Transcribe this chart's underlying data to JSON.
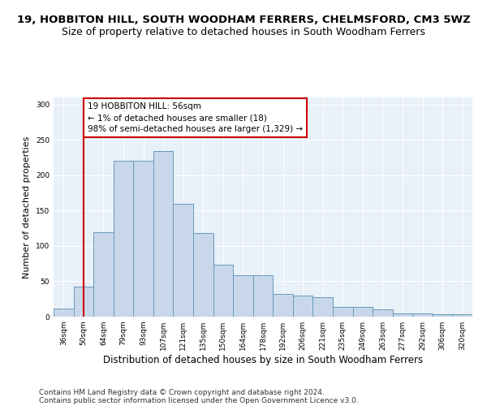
{
  "title": "19, HOBBITON HILL, SOUTH WOODHAM FERRERS, CHELMSFORD, CM3 5WZ",
  "subtitle": "Size of property relative to detached houses in South Woodham Ferrers",
  "xlabel": "Distribution of detached houses by size in South Woodham Ferrers",
  "ylabel": "Number of detached properties",
  "categories": [
    "36sqm",
    "50sqm",
    "64sqm",
    "79sqm",
    "93sqm",
    "107sqm",
    "121sqm",
    "135sqm",
    "150sqm",
    "164sqm",
    "178sqm",
    "192sqm",
    "206sqm",
    "221sqm",
    "235sqm",
    "249sqm",
    "263sqm",
    "277sqm",
    "292sqm",
    "306sqm",
    "320sqm"
  ],
  "values": [
    11,
    42,
    119,
    220,
    220,
    234,
    160,
    118,
    73,
    59,
    58,
    32,
    30,
    27,
    14,
    14,
    10,
    5,
    5,
    3,
    3
  ],
  "bar_color": "#c8d8ea",
  "bar_edge_color": "#6699bb",
  "bar_linewidth": 0.7,
  "annotation_text_line1": "19 HOBBITON HILL: 56sqm",
  "annotation_text_line2": "← 1% of detached houses are smaller (18)",
  "annotation_text_line3": "98% of semi-detached houses are larger (1,329) →",
  "annotation_box_facecolor": "#ffffff",
  "annotation_box_edgecolor": "#cc0000",
  "vline_color": "#cc0000",
  "vline_x_index": 1,
  "footer1": "Contains HM Land Registry data © Crown copyright and database right 2024.",
  "footer2": "Contains public sector information licensed under the Open Government Licence v3.0.",
  "title_fontsize": 9.5,
  "subtitle_fontsize": 9,
  "xlabel_fontsize": 8.5,
  "ylabel_fontsize": 8,
  "tick_fontsize": 6.5,
  "annotation_fontsize": 7.5,
  "footer_fontsize": 6.5,
  "yticks": [
    0,
    50,
    100,
    150,
    200,
    250,
    300
  ],
  "ylim": [
    0,
    310
  ],
  "background_color": "#ffffff",
  "plot_bg_color": "#e8f0f8",
  "grid_color": "#ffffff"
}
